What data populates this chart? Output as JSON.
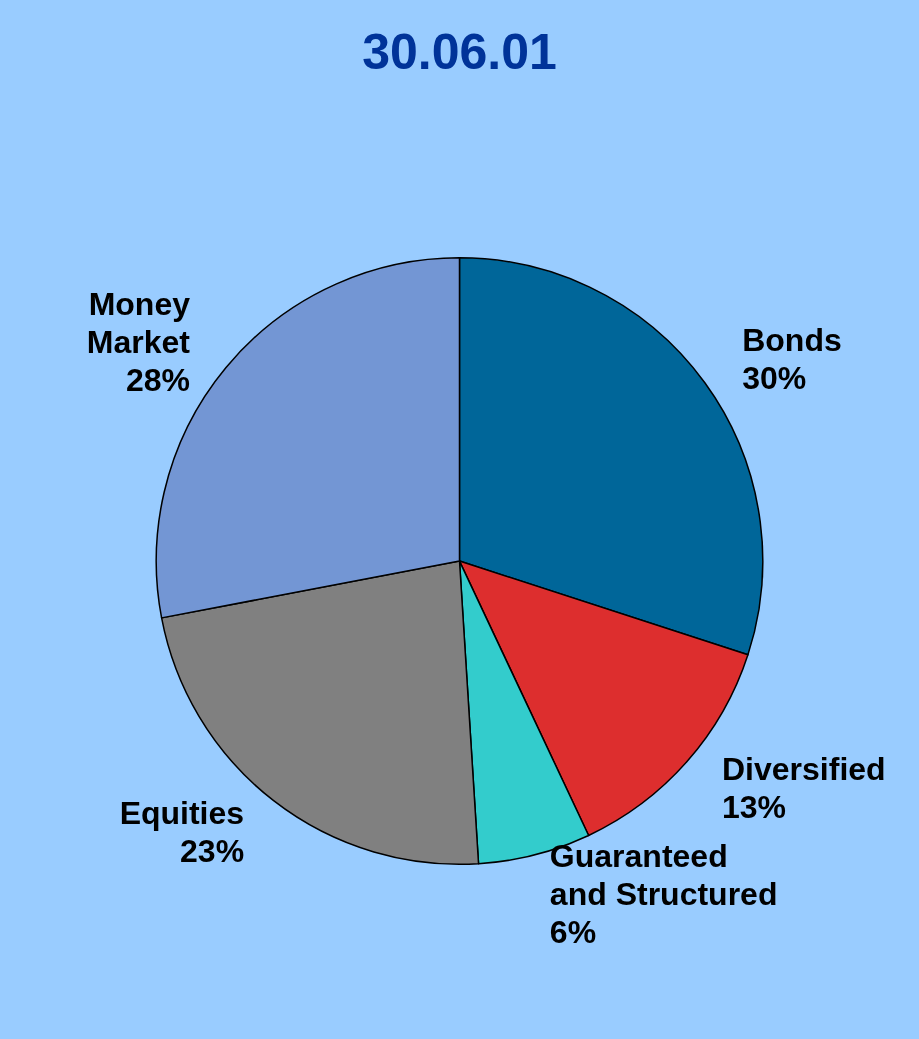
{
  "chart_data": {
    "type": "pie",
    "title": "30.06.01",
    "categories": [
      "Bonds",
      "Diversified",
      "Guaranteed and Structured",
      "Equities",
      "Money Market"
    ],
    "values": [
      30,
      13,
      6,
      23,
      28
    ],
    "colors": [
      "#006699",
      "#dd2e2e",
      "#33cccc",
      "#808080",
      "#7396d4"
    ],
    "value_labels": [
      "30%",
      "13%",
      "6%",
      "23%",
      "28%"
    ],
    "legend": false
  }
}
